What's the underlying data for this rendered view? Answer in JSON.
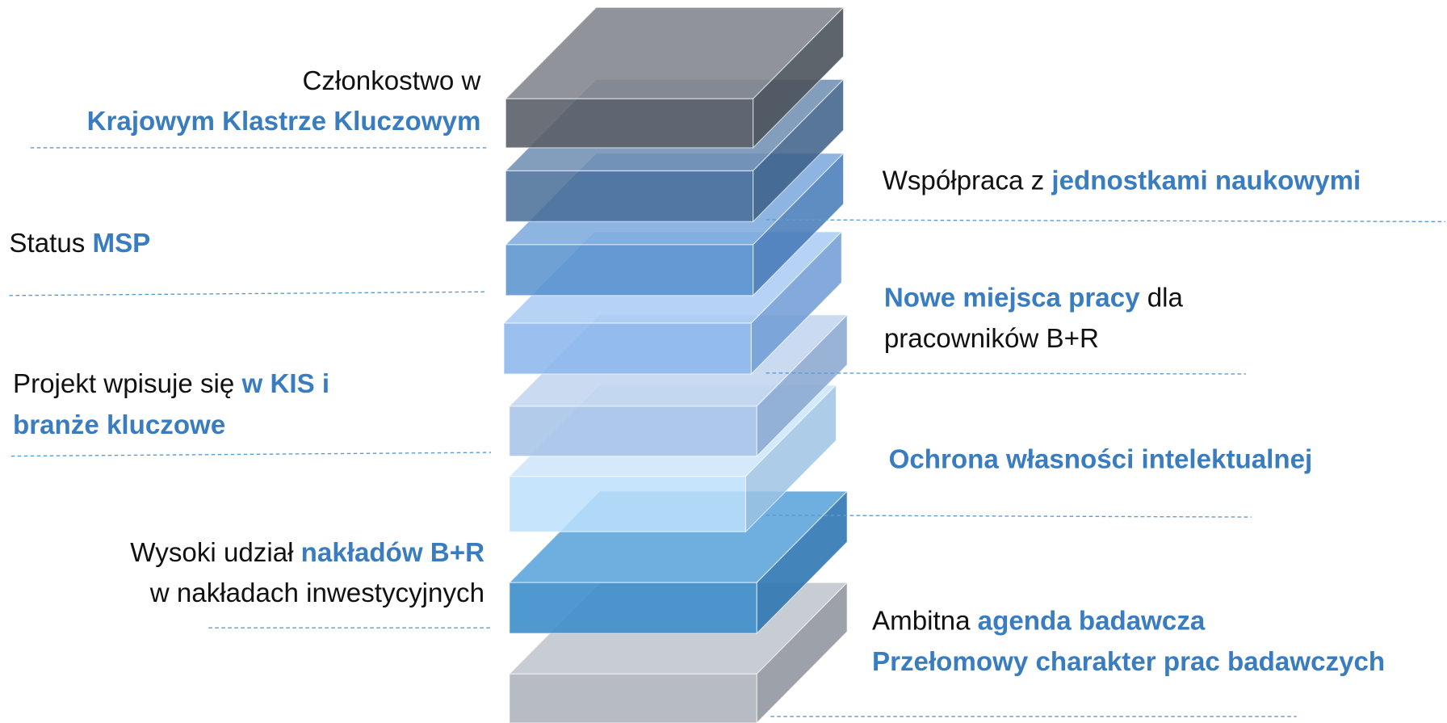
{
  "labels": [
    [
      "Członkostwo w",
      "Krajowym Klastrze Kluczowym"
    ],
    [
      "Status",
      "MSP"
    ],
    [
      "Projekt wpisuje się",
      "w KIS i",
      "branże kluczowe"
    ],
    [
      "Wysoki udział",
      "nakładów B+R",
      "w nakładach inwestycyjnych"
    ],
    [
      "Współpraca z",
      "jednostkami naukowymi"
    ],
    [
      "Nowe miejsca pracy",
      "dla",
      "pracowników B+R"
    ],
    [
      "Ochrona własności intelektualnej"
    ],
    [
      "Ambitna",
      "agenda badawcza",
      "Przełomowy charakter prac badawczych"
    ]
  ]
}
